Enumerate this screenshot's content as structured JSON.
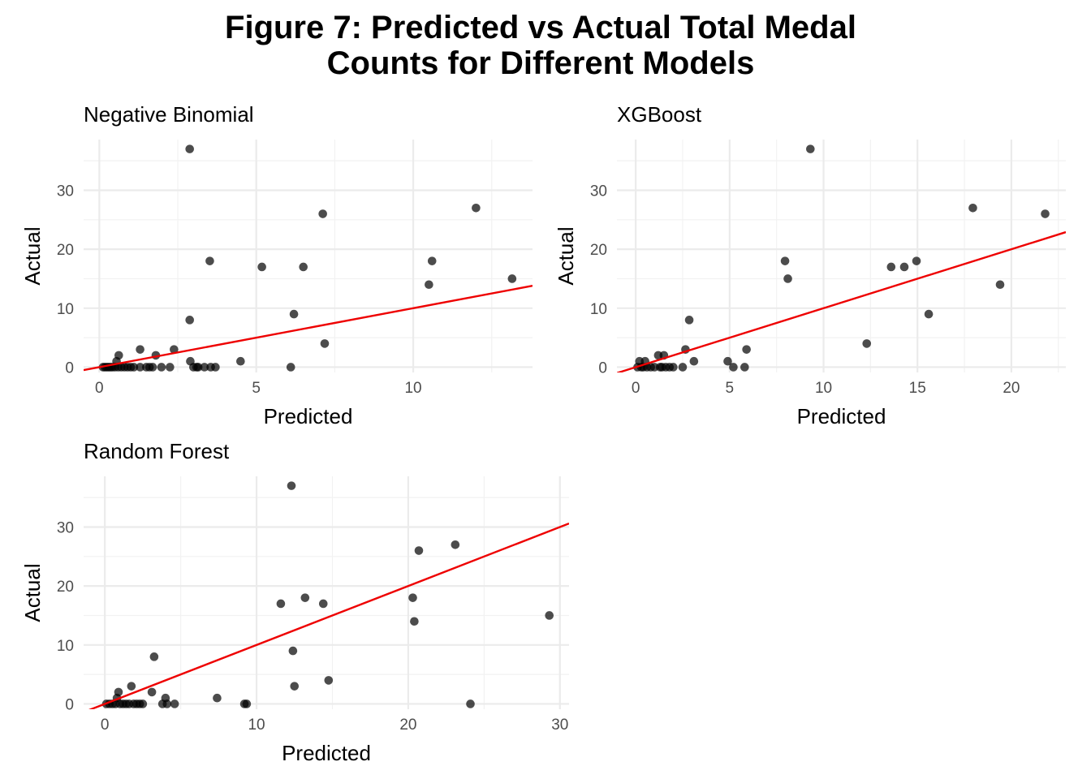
{
  "title_lines": [
    "Figure 7: Predicted vs Actual Total Medal",
    "Counts for Different Models"
  ],
  "chart_data": [
    {
      "type": "scatter",
      "title": "Negative Binomial",
      "xlabel": "Predicted",
      "ylabel": "Actual",
      "xlim": [
        -0.5,
        13.8
      ],
      "ylim": [
        -0.9,
        38.6
      ],
      "xticks": [
        0,
        5,
        10
      ],
      "yticks": [
        0,
        10,
        20,
        30
      ],
      "fit_line": {
        "intercept": 0,
        "slope": 1,
        "color": "#ee0000"
      },
      "point_color": "#000000",
      "points": [
        [
          0.12,
          0
        ],
        [
          0.18,
          0
        ],
        [
          0.24,
          0
        ],
        [
          0.3,
          0
        ],
        [
          0.36,
          0
        ],
        [
          0.42,
          0
        ],
        [
          0.5,
          0
        ],
        [
          0.55,
          1
        ],
        [
          0.6,
          0
        ],
        [
          0.62,
          2
        ],
        [
          0.7,
          0
        ],
        [
          0.8,
          0
        ],
        [
          0.9,
          0
        ],
        [
          1.0,
          0
        ],
        [
          1.1,
          0
        ],
        [
          1.3,
          3
        ],
        [
          1.3,
          0
        ],
        [
          1.5,
          0
        ],
        [
          1.6,
          0
        ],
        [
          1.7,
          0
        ],
        [
          1.8,
          2
        ],
        [
          1.98,
          0
        ],
        [
          2.25,
          0
        ],
        [
          2.38,
          3
        ],
        [
          2.88,
          37
        ],
        [
          2.88,
          8
        ],
        [
          2.9,
          1
        ],
        [
          3.0,
          0
        ],
        [
          3.1,
          0
        ],
        [
          3.15,
          0
        ],
        [
          3.35,
          0
        ],
        [
          3.52,
          18
        ],
        [
          3.55,
          0
        ],
        [
          3.7,
          0
        ],
        [
          4.5,
          1
        ],
        [
          5.18,
          17
        ],
        [
          6.1,
          0
        ],
        [
          6.2,
          9
        ],
        [
          6.5,
          17
        ],
        [
          7.12,
          26
        ],
        [
          7.18,
          4
        ],
        [
          10.5,
          14
        ],
        [
          10.6,
          18
        ],
        [
          12.0,
          27
        ],
        [
          13.15,
          15
        ]
      ]
    },
    {
      "type": "scatter",
      "title": "XGBoost",
      "xlabel": "Predicted",
      "ylabel": "Actual",
      "xlim": [
        -1.0,
        22.9
      ],
      "ylim": [
        -0.9,
        38.6
      ],
      "xticks": [
        0,
        5,
        10,
        15,
        20
      ],
      "yticks": [
        0,
        10,
        20,
        30
      ],
      "fit_line": {
        "intercept": 0,
        "slope": 1,
        "color": "#ee0000"
      },
      "point_color": "#000000",
      "points": [
        [
          0.1,
          0
        ],
        [
          0.2,
          1
        ],
        [
          0.3,
          0
        ],
        [
          0.4,
          0
        ],
        [
          0.5,
          1
        ],
        [
          0.6,
          0
        ],
        [
          0.8,
          0
        ],
        [
          1.0,
          0
        ],
        [
          1.2,
          2
        ],
        [
          1.3,
          0
        ],
        [
          1.4,
          0
        ],
        [
          1.5,
          2
        ],
        [
          1.6,
          0
        ],
        [
          1.8,
          0
        ],
        [
          2.0,
          0
        ],
        [
          2.5,
          0
        ],
        [
          2.65,
          3
        ],
        [
          2.85,
          8
        ],
        [
          3.1,
          1
        ],
        [
          4.9,
          1
        ],
        [
          5.2,
          0
        ],
        [
          5.8,
          0
        ],
        [
          5.9,
          3
        ],
        [
          7.95,
          18
        ],
        [
          8.1,
          15
        ],
        [
          9.3,
          37
        ],
        [
          12.3,
          4
        ],
        [
          13.6,
          17
        ],
        [
          14.3,
          17
        ],
        [
          14.95,
          18
        ],
        [
          15.6,
          9
        ],
        [
          17.95,
          27
        ],
        [
          19.4,
          14
        ],
        [
          21.8,
          26
        ]
      ]
    },
    {
      "type": "scatter",
      "title": "Random Forest",
      "xlabel": "Predicted",
      "ylabel": "Actual",
      "xlim": [
        -1.4,
        30.6
      ],
      "ylim": [
        -0.9,
        38.6
      ],
      "xticks": [
        0,
        10,
        20,
        30
      ],
      "yticks": [
        0,
        10,
        20,
        30
      ],
      "fit_line": {
        "intercept": 0,
        "slope": 1,
        "color": "#ee0000"
      },
      "point_color": "#000000",
      "points": [
        [
          0.1,
          0
        ],
        [
          0.3,
          0
        ],
        [
          0.5,
          0
        ],
        [
          0.7,
          0
        ],
        [
          0.8,
          1
        ],
        [
          0.9,
          2
        ],
        [
          1.0,
          0
        ],
        [
          1.2,
          0
        ],
        [
          1.4,
          0
        ],
        [
          1.6,
          0
        ],
        [
          1.75,
          3
        ],
        [
          1.9,
          0
        ],
        [
          2.1,
          0
        ],
        [
          2.3,
          0
        ],
        [
          2.5,
          0
        ],
        [
          3.1,
          2
        ],
        [
          3.25,
          8
        ],
        [
          3.8,
          0
        ],
        [
          4.0,
          1
        ],
        [
          4.1,
          0
        ],
        [
          4.6,
          0
        ],
        [
          7.4,
          1
        ],
        [
          9.2,
          0
        ],
        [
          9.35,
          0
        ],
        [
          11.6,
          17
        ],
        [
          12.3,
          37
        ],
        [
          12.4,
          9
        ],
        [
          12.5,
          3
        ],
        [
          13.2,
          18
        ],
        [
          14.4,
          17
        ],
        [
          14.75,
          4
        ],
        [
          20.3,
          18
        ],
        [
          20.4,
          14
        ],
        [
          20.7,
          26
        ],
        [
          23.1,
          27
        ],
        [
          24.1,
          0
        ],
        [
          29.3,
          15
        ]
      ]
    }
  ]
}
